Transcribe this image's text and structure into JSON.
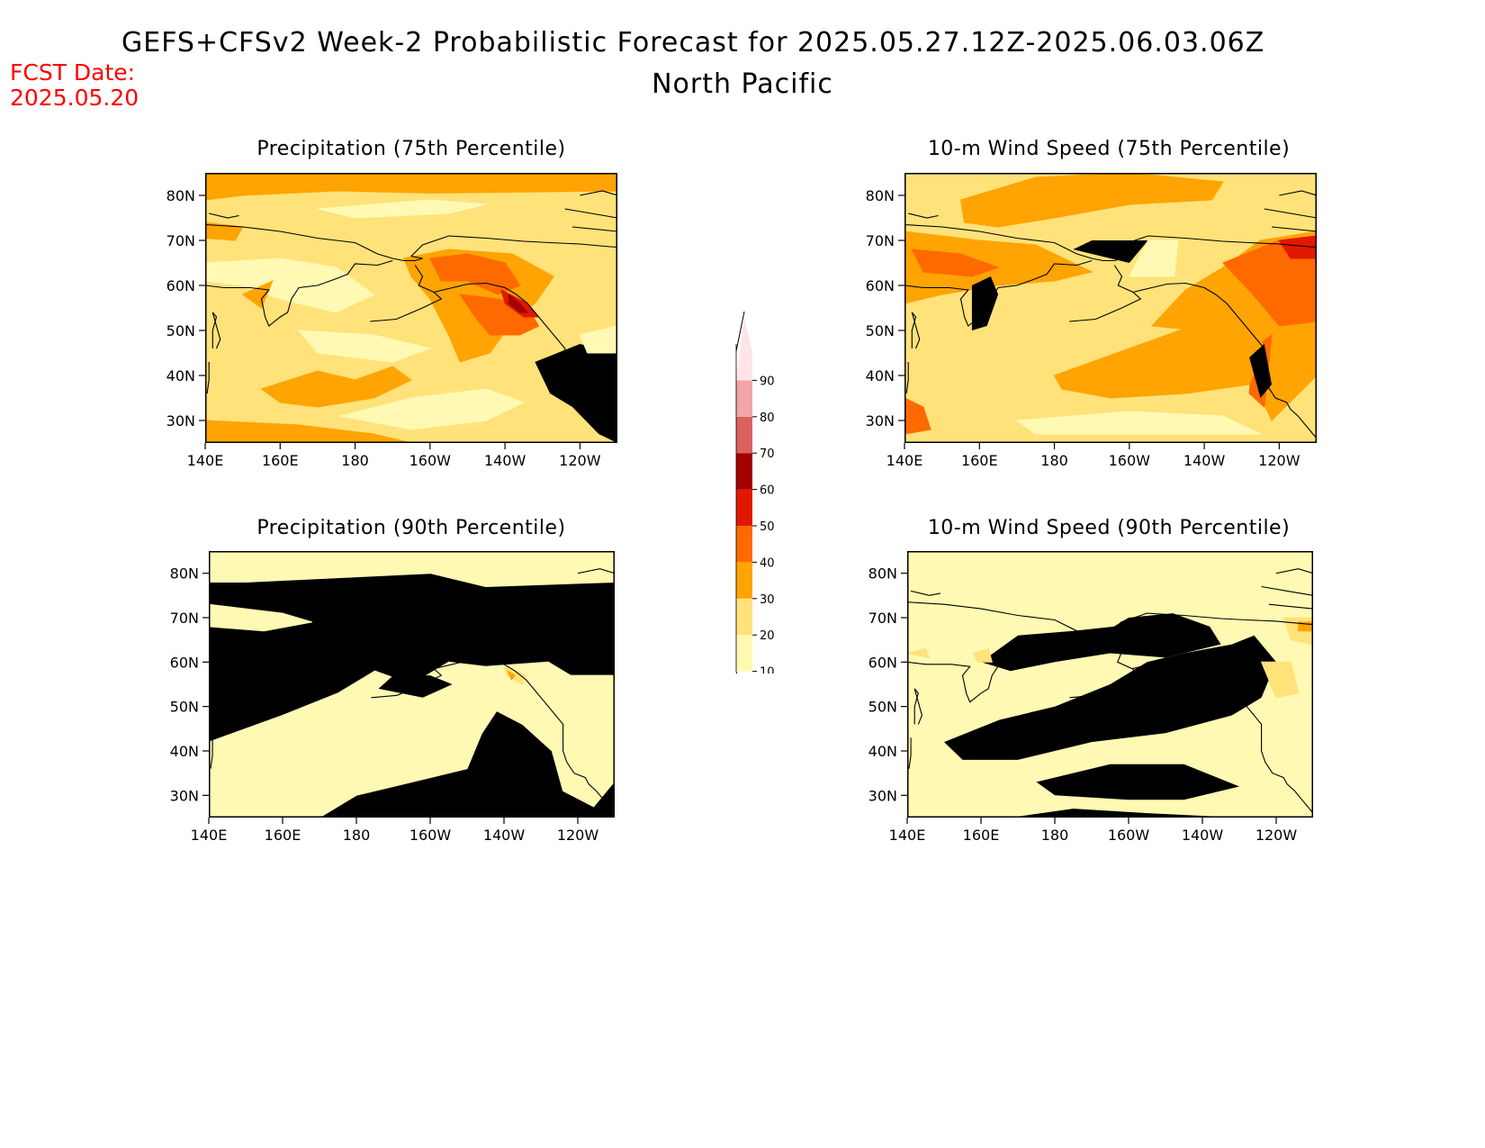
{
  "header": {
    "title_line1": "GEFS+CFSv2 Week-2 Probabilistic Forecast for 2025.05.27.12Z-2025.06.03.06Z",
    "title_line2": "North Pacific",
    "fcst_label": "FCST Date:",
    "fcst_date": "2025.05.20"
  },
  "panels": [
    {
      "title": "Precipitation (75th Percentile)",
      "variable": "precipitation",
      "percentile": 75
    },
    {
      "title": "10-m Wind Speed (75th Percentile)",
      "variable": "wind",
      "percentile": 75
    },
    {
      "title": "Precipitation (90th Percentile)",
      "variable": "precipitation",
      "percentile": 90
    },
    {
      "title": "10-m Wind Speed (90th Percentile)",
      "variable": "wind",
      "percentile": 90
    }
  ],
  "axes": {
    "lon_labels": [
      "140E",
      "160E",
      "180",
      "160W",
      "140W",
      "120W"
    ],
    "lat_labels": [
      "80N",
      "70N",
      "60N",
      "50N",
      "40N",
      "30N"
    ]
  },
  "colorbar": {
    "levels": [
      "10",
      "20",
      "30",
      "40",
      "50",
      "60",
      "70",
      "80",
      "90"
    ],
    "colors": [
      "#fff9b4",
      "#ffe27a",
      "#ffa402",
      "#ff6a00",
      "#e11800",
      "#a50000",
      "#d9625f",
      "#f2a5a6",
      "#ffe5e6"
    ]
  }
}
